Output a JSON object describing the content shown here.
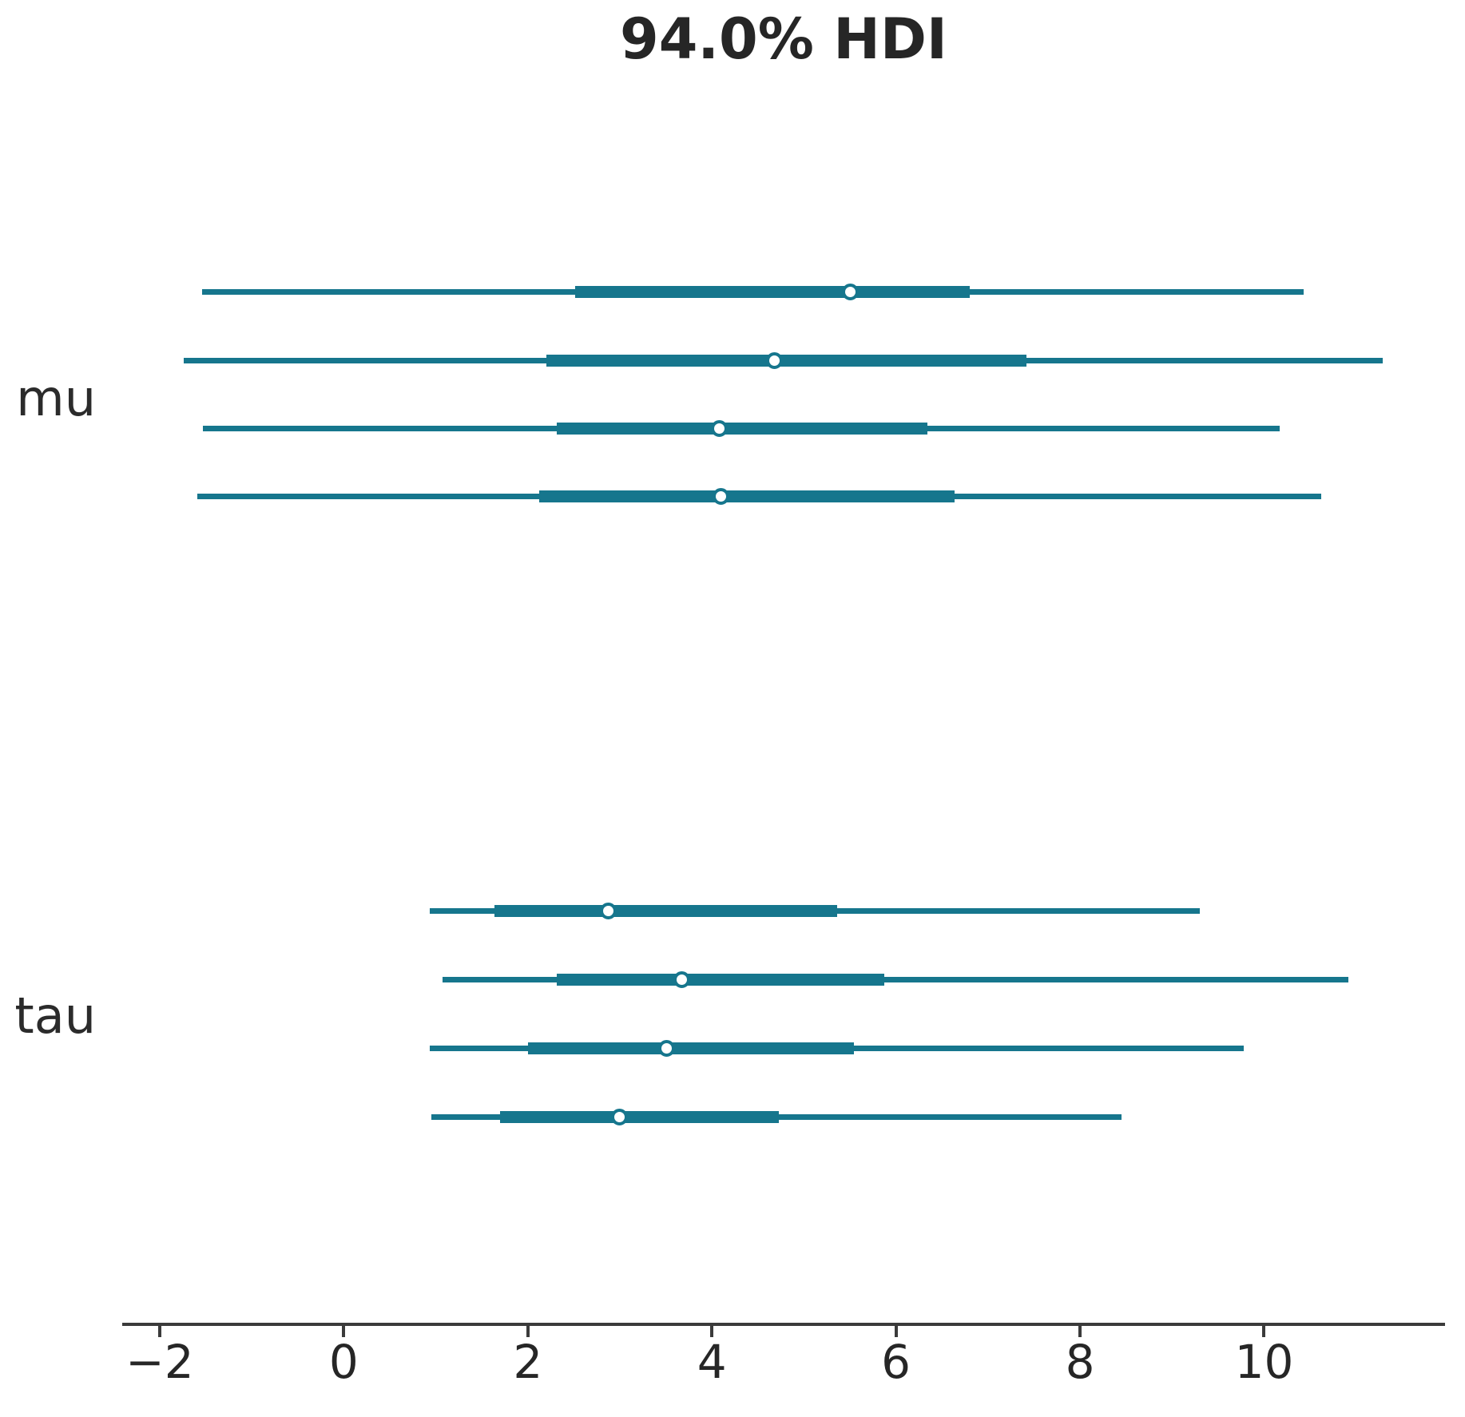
{
  "title": "94.0% HDI",
  "colors": {
    "interval": "#16768D",
    "marker_face": "#ffffff",
    "axis": "#3b3b3b",
    "text": "#262626"
  },
  "y_axis_labels": [
    "mu",
    "tau"
  ],
  "chart_data": {
    "type": "forest",
    "title": "94.0% HDI",
    "hdi_percent": 94.0,
    "xlim": [
      -2.41,
      11.96
    ],
    "x_ticks": [
      -2,
      0,
      2,
      4,
      6,
      8,
      10
    ],
    "x_tick_labels": [
      "−2",
      "0",
      "2",
      "4",
      "6",
      "8",
      "10"
    ],
    "xlabel": "",
    "ylabel": "",
    "grid": false,
    "legend": "none",
    "orientation": "horizontal",
    "groups": [
      {
        "label": "mu",
        "rows": [
          {
            "chain": 1,
            "hdi_low": -1.54,
            "q25": 2.51,
            "median": 5.5,
            "q75": 6.8,
            "hdi_high": 10.43
          },
          {
            "chain": 2,
            "hdi_low": -1.74,
            "q25": 2.2,
            "median": 4.68,
            "q75": 7.42,
            "hdi_high": 11.29
          },
          {
            "chain": 3,
            "hdi_low": -1.53,
            "q25": 2.31,
            "median": 4.08,
            "q75": 6.34,
            "hdi_high": 10.17
          },
          {
            "chain": 4,
            "hdi_low": -1.59,
            "q25": 2.12,
            "median": 4.1,
            "q75": 6.64,
            "hdi_high": 10.62
          }
        ]
      },
      {
        "label": "tau",
        "rows": [
          {
            "chain": 1,
            "hdi_low": 0.93,
            "q25": 1.64,
            "median": 2.87,
            "q75": 5.36,
            "hdi_high": 9.3
          },
          {
            "chain": 2,
            "hdi_low": 1.07,
            "q25": 2.31,
            "median": 3.67,
            "q75": 5.87,
            "hdi_high": 10.92
          },
          {
            "chain": 3,
            "hdi_low": 0.93,
            "q25": 2.0,
            "median": 3.51,
            "q75": 5.54,
            "hdi_high": 9.78
          },
          {
            "chain": 4,
            "hdi_low": 0.95,
            "q25": 1.7,
            "median": 3.0,
            "q75": 4.73,
            "hdi_high": 8.45
          }
        ]
      }
    ]
  }
}
